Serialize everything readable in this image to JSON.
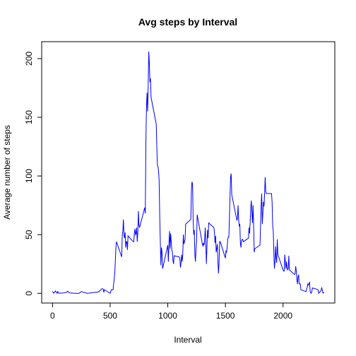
{
  "chart_data": {
    "type": "line",
    "title": "Avg steps by Interval",
    "xlabel": "Interval",
    "ylabel": "Average number of steps",
    "x": [
      0,
      10,
      25,
      40,
      45,
      55,
      100,
      125,
      130,
      150,
      200,
      230,
      250,
      300,
      320,
      400,
      430,
      440,
      445,
      450,
      500,
      510,
      525,
      540,
      550,
      555,
      600,
      605,
      610,
      615,
      620,
      625,
      630,
      635,
      640,
      645,
      650,
      655,
      700,
      705,
      710,
      715,
      720,
      725,
      730,
      735,
      740,
      745,
      750,
      755,
      800,
      805,
      810,
      815,
      820,
      825,
      830,
      835,
      840,
      845,
      850,
      855,
      900,
      905,
      910,
      915,
      920,
      925,
      930,
      935,
      940,
      945,
      950,
      955,
      1000,
      1005,
      1010,
      1015,
      1020,
      1025,
      1030,
      1035,
      1040,
      1045,
      1050,
      1055,
      1100,
      1105,
      1110,
      1115,
      1120,
      1125,
      1130,
      1135,
      1140,
      1145,
      1150,
      1155,
      1200,
      1205,
      1210,
      1215,
      1220,
      1225,
      1230,
      1235,
      1240,
      1245,
      1250,
      1255,
      1300,
      1305,
      1310,
      1315,
      1320,
      1325,
      1330,
      1335,
      1340,
      1345,
      1350,
      1355,
      1400,
      1405,
      1410,
      1415,
      1420,
      1425,
      1430,
      1435,
      1440,
      1445,
      1450,
      1455,
      1500,
      1505,
      1510,
      1515,
      1520,
      1525,
      1530,
      1535,
      1540,
      1545,
      1550,
      1555,
      1600,
      1605,
      1610,
      1615,
      1620,
      1625,
      1630,
      1635,
      1640,
      1645,
      1650,
      1655,
      1700,
      1705,
      1710,
      1715,
      1720,
      1725,
      1730,
      1735,
      1740,
      1745,
      1750,
      1755,
      1800,
      1805,
      1810,
      1815,
      1820,
      1825,
      1830,
      1835,
      1840,
      1845,
      1850,
      1855,
      1900,
      1905,
      1910,
      1915,
      1920,
      1925,
      1930,
      1935,
      1940,
      1945,
      1950,
      1955,
      2000,
      2005,
      2010,
      2015,
      2020,
      2025,
      2030,
      2035,
      2040,
      2045,
      2050,
      2055,
      2100,
      2105,
      2110,
      2115,
      2120,
      2125,
      2130,
      2135,
      2140,
      2145,
      2150,
      2155,
      2200,
      2205,
      2210,
      2215,
      2220,
      2225,
      2230,
      2235,
      2240,
      2245,
      2250,
      2255,
      2300,
      2305,
      2310,
      2315,
      2320,
      2325,
      2330,
      2335,
      2340,
      2345,
      2350,
      2355
    ],
    "series": [
      {
        "color": "#0000ff",
        "values": [
          1.7,
          0.1,
          2.1,
          0,
          1.5,
          0.1,
          0.3,
          1.1,
          1.8,
          0.3,
          0,
          0,
          1.5,
          0,
          0.2,
          1.2,
          4.1,
          3.5,
          0.8,
          3.1,
          0,
          3,
          3,
          17,
          39,
          44,
          31,
          49,
          53,
          63,
          50,
          47,
          52,
          39,
          44,
          44,
          37,
          49,
          44,
          44,
          51,
          55,
          50,
          51,
          56,
          44,
          52,
          70,
          58,
          56,
          73,
          68,
          129,
          158,
          171,
          155,
          177,
          206,
          196,
          180,
          183,
          167,
          144,
          124,
          109,
          108,
          104,
          96,
          66,
          45,
          24,
          39,
          35,
          21,
          41,
          27,
          42,
          53,
          38,
          51,
          44,
          37,
          35,
          28,
          25,
          32,
          31,
          29,
          22,
          26,
          33,
          27,
          33,
          50,
          42,
          44,
          46,
          59,
          63,
          88,
          95,
          93,
          63,
          50,
          54,
          33,
          27,
          38,
          45,
          67,
          42,
          40,
          43,
          41,
          46,
          56,
          43,
          25,
          40,
          54,
          47,
          60,
          56,
          52,
          43,
          49,
          35,
          38,
          42,
          27,
          17,
          26,
          44,
          44,
          30,
          36,
          35,
          39,
          46,
          48,
          48,
          65,
          83,
          99,
          102,
          84,
          62,
          64,
          75,
          63,
          57,
          59,
          43,
          39,
          45,
          46,
          46,
          44,
          47,
          56,
          51,
          61,
          73,
          79,
          69,
          60,
          75,
          57,
          35,
          38,
          41,
          58,
          75,
          85,
          59,
          68,
          78,
          74,
          85,
          99,
          87,
          85,
          85,
          78,
          58,
          53,
          36,
          21,
          27,
          40,
          30,
          26,
          46,
          33,
          20,
          19,
          19,
          33,
          27,
          21,
          27,
          21,
          20,
          21,
          32,
          20,
          16,
          17,
          23,
          19,
          12,
          8,
          14,
          16,
          8,
          8,
          8,
          3,
          1.5,
          4,
          5,
          8,
          7,
          8,
          9.8,
          2.2,
          0.3,
          0.1,
          1.6,
          4.6,
          3.3,
          2.8,
          0,
          0.8,
          1,
          1.6,
          2.6,
          4.7,
          3.3,
          0.6,
          0.2,
          1.1
        ]
      }
    ],
    "xlim": [
      -94.2,
      2449.2
    ],
    "xticks": [
      0,
      500,
      1000,
      1500,
      2000
    ],
    "ylim": [
      -8.25,
      214.4
    ],
    "yticks": [
      0,
      50,
      100,
      150,
      200
    ]
  }
}
